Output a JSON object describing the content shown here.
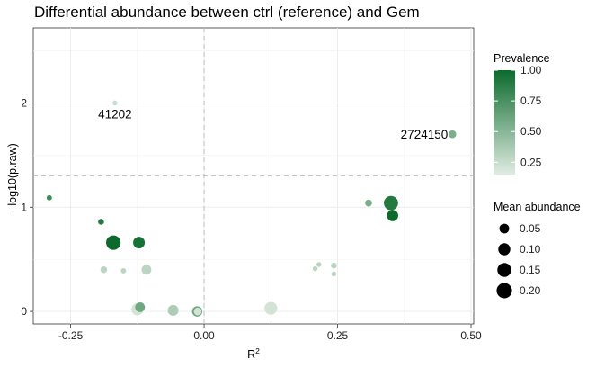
{
  "chart_data": {
    "type": "scatter",
    "title": "Differential abundance between ctrl (reference) and Gem",
    "xlabel": "R",
    "xlabel_superscript": "2",
    "ylabel": "-log10(p.raw)",
    "xlim": [
      -0.32,
      0.505
    ],
    "ylim": [
      -0.12,
      2.72
    ],
    "x_ticks": [
      -0.25,
      0.0,
      0.25,
      0.5
    ],
    "x_tick_labels": [
      "-0.25",
      "0.00",
      "0.25",
      "0.50"
    ],
    "y_ticks": [
      0,
      1,
      2
    ],
    "y_tick_labels": [
      "0",
      "1",
      "2"
    ],
    "reference_lines": {
      "vertical_x": 0.0,
      "horizontal_y": 1.301
    },
    "grid": true,
    "legend_placement": "right",
    "color_scale": {
      "title": "Prevalence",
      "low_color": "#e0ece2",
      "high_color": "#0b6a2c",
      "range": [
        0.15,
        1.0
      ],
      "ticks": [
        0.25,
        0.5,
        0.75,
        1.0
      ],
      "tick_labels": [
        "0.25",
        "0.50",
        "0.75",
        "1.00"
      ]
    },
    "size_scale": {
      "title": "Mean abundance",
      "ticks": [
        0.05,
        0.1,
        0.15,
        0.2
      ],
      "tick_labels": [
        "0.05",
        "0.10",
        "0.15",
        "0.20"
      ]
    },
    "points": [
      {
        "x": -0.167,
        "y": 2.0,
        "prevalence": 0.25,
        "abundance": 0.001
      },
      {
        "x": 0.465,
        "y": 1.7,
        "prevalence": 0.55,
        "abundance": 0.02
      },
      {
        "x": -0.29,
        "y": 1.09,
        "prevalence": 0.8,
        "abundance": 0.002
      },
      {
        "x": -0.193,
        "y": 0.86,
        "prevalence": 0.9,
        "abundance": 0.005
      },
      {
        "x": -0.17,
        "y": 0.66,
        "prevalence": 1.0,
        "abundance": 0.17
      },
      {
        "x": -0.122,
        "y": 0.66,
        "prevalence": 0.95,
        "abundance": 0.09
      },
      {
        "x": 0.308,
        "y": 1.04,
        "prevalence": 0.55,
        "abundance": 0.012
      },
      {
        "x": 0.35,
        "y": 1.04,
        "prevalence": 0.9,
        "abundance": 0.16
      },
      {
        "x": 0.353,
        "y": 0.92,
        "prevalence": 1.0,
        "abundance": 0.08
      },
      {
        "x": -0.188,
        "y": 0.4,
        "prevalence": 0.3,
        "abundance": 0.01
      },
      {
        "x": -0.151,
        "y": 0.39,
        "prevalence": 0.3,
        "abundance": 0.002
      },
      {
        "x": -0.108,
        "y": 0.4,
        "prevalence": 0.3,
        "abundance": 0.05
      },
      {
        "x": -0.12,
        "y": 0.04,
        "prevalence": 0.6,
        "abundance": 0.05
      },
      {
        "x": -0.125,
        "y": 0.02,
        "prevalence": 0.2,
        "abundance": 0.1
      },
      {
        "x": -0.058,
        "y": 0.01,
        "prevalence": 0.35,
        "abundance": 0.07
      },
      {
        "x": -0.013,
        "y": 0.0,
        "prevalence": 0.6,
        "abundance": 0.06
      },
      {
        "x": -0.012,
        "y": 0.0,
        "prevalence": 0.2,
        "abundance": 0.02
      },
      {
        "x": 0.125,
        "y": 0.03,
        "prevalence": 0.2,
        "abundance": 0.12
      },
      {
        "x": 0.208,
        "y": 0.41,
        "prevalence": 0.3,
        "abundance": 0.001
      },
      {
        "x": 0.215,
        "y": 0.45,
        "prevalence": 0.3,
        "abundance": 0.001
      },
      {
        "x": 0.243,
        "y": 0.44,
        "prevalence": 0.3,
        "abundance": 0.005
      },
      {
        "x": 0.243,
        "y": 0.36,
        "prevalence": 0.3,
        "abundance": 0.001
      }
    ],
    "annotations": [
      {
        "text": "41202",
        "x": -0.167,
        "y": 2.0
      },
      {
        "text": "2724150",
        "x": 0.465,
        "y": 1.7
      }
    ]
  }
}
